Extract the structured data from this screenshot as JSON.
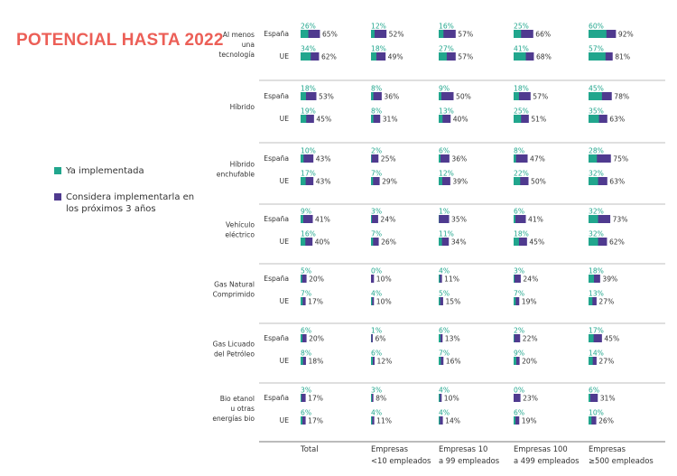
{
  "title": "POTENCIAL HASTA 2022",
  "colors": {
    "implemented": "#21a68d",
    "considering": "#4f3a8f",
    "title": "#ec5f57"
  },
  "chart_data": {
    "type": "bar",
    "title": "POTENCIAL HASTA 2022",
    "legend": [
      {
        "key": "implemented",
        "label": "Ya implementada"
      },
      {
        "key": "considering",
        "label": "Considera implementarla en los próximos 3 años"
      }
    ],
    "columns": [
      {
        "line1": "Total",
        "line2": ""
      },
      {
        "line1": "Empresas",
        "line2": "<10 empleados"
      },
      {
        "line1": "Empresas 10",
        "line2": "a 99 empleados"
      },
      {
        "line1": "Empresas 100",
        "line2": "a 499 empleados"
      },
      {
        "line1": "Empresas",
        "line2": "≥500 empleados"
      }
    ],
    "row_labels": [
      "España",
      "UE"
    ],
    "unit": "%",
    "ylim": [
      0,
      100
    ],
    "technologies": [
      {
        "name_lines": [
          "Al menos",
          "una",
          "tecnología"
        ],
        "espana": {
          "implemented": [
            26,
            12,
            16,
            25,
            60
          ],
          "considering": [
            65,
            52,
            57,
            66,
            92
          ]
        },
        "ue": {
          "implemented": [
            34,
            18,
            27,
            41,
            57
          ],
          "considering": [
            62,
            49,
            57,
            68,
            81
          ]
        }
      },
      {
        "name_lines": [
          "Híbrido"
        ],
        "espana": {
          "implemented": [
            18,
            8,
            9,
            18,
            45
          ],
          "considering": [
            53,
            36,
            50,
            57,
            78
          ]
        },
        "ue": {
          "implemented": [
            19,
            8,
            13,
            25,
            35
          ],
          "considering": [
            45,
            31,
            40,
            51,
            63
          ]
        }
      },
      {
        "name_lines": [
          "Híbrido",
          "enchufable"
        ],
        "espana": {
          "implemented": [
            10,
            2,
            6,
            8,
            28
          ],
          "considering": [
            43,
            25,
            36,
            47,
            75
          ]
        },
        "ue": {
          "implemented": [
            17,
            7,
            12,
            22,
            32
          ],
          "considering": [
            43,
            29,
            39,
            50,
            63
          ]
        }
      },
      {
        "name_lines": [
          "Vehículo",
          "eléctrico"
        ],
        "espana": {
          "implemented": [
            9,
            3,
            1,
            6,
            32
          ],
          "considering": [
            41,
            24,
            35,
            41,
            73
          ]
        },
        "ue": {
          "implemented": [
            16,
            7,
            11,
            18,
            32
          ],
          "considering": [
            40,
            26,
            34,
            45,
            62
          ]
        }
      },
      {
        "name_lines": [
          "Gas Natural",
          "Comprimido"
        ],
        "espana": {
          "implemented": [
            5,
            0,
            4,
            3,
            18
          ],
          "considering": [
            20,
            10,
            11,
            24,
            39
          ]
        },
        "ue": {
          "implemented": [
            7,
            4,
            5,
            7,
            13
          ],
          "considering": [
            17,
            10,
            15,
            19,
            27
          ]
        }
      },
      {
        "name_lines": [
          "Gas Licuado",
          "del Petróleo"
        ],
        "espana": {
          "implemented": [
            6,
            1,
            6,
            2,
            17
          ],
          "considering": [
            20,
            6,
            13,
            22,
            45
          ]
        },
        "ue": {
          "implemented": [
            8,
            6,
            7,
            9,
            14
          ],
          "considering": [
            18,
            12,
            16,
            20,
            27
          ]
        }
      },
      {
        "name_lines": [
          "Bio etanol",
          "u otras",
          "energías bio"
        ],
        "espana": {
          "implemented": [
            3,
            3,
            4,
            0,
            6
          ],
          "considering": [
            17,
            8,
            10,
            23,
            31
          ]
        },
        "ue": {
          "implemented": [
            6,
            4,
            4,
            6,
            10
          ],
          "considering": [
            17,
            11,
            14,
            19,
            26
          ]
        }
      }
    ]
  }
}
